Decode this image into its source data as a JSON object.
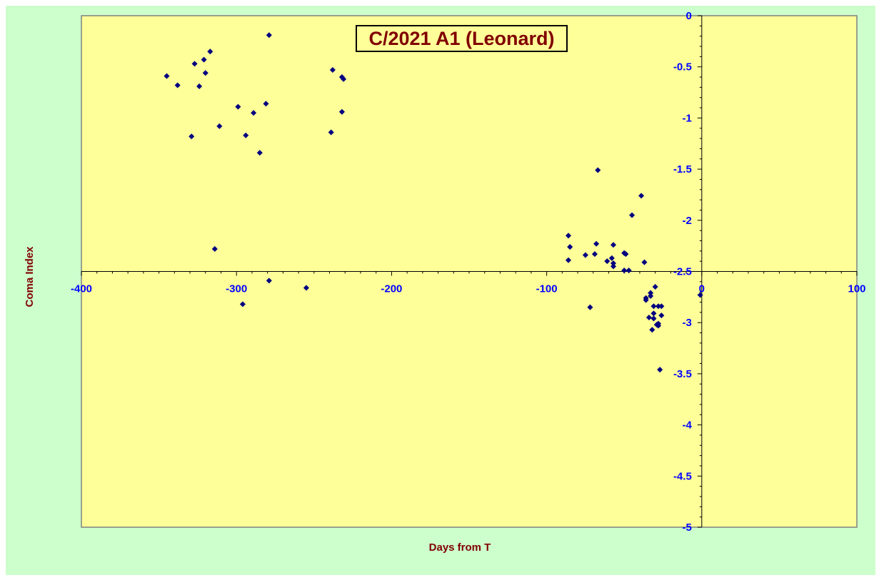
{
  "colors": {
    "outer_background": "#ccffcc",
    "plot_background": "#ffff99",
    "plot_border": "#808080",
    "axis_line": "#000000",
    "tick_label": "#0000ff",
    "axis_title": "#800000",
    "marker_fill": "#000080",
    "title_text": "#800000"
  },
  "chart_data": {
    "type": "scatter",
    "title": "C/2021 A1 (Leonard)",
    "xlabel": "Days from  T",
    "ylabel": "Coma Index",
    "xlim": [
      -400,
      100
    ],
    "ylim": [
      -5,
      0
    ],
    "x_ticks": [
      -400,
      -300,
      -200,
      -100,
      0,
      100
    ],
    "y_ticks": [
      0,
      -0.5,
      -1,
      -1.5,
      -2,
      -2.5,
      -3,
      -3.5,
      -4,
      -4.5,
      -5
    ],
    "x_tick_labels": [
      "-400",
      "-300",
      "-200",
      "-100",
      "0",
      "100"
    ],
    "y_tick_labels": [
      "0",
      "-0.5",
      "-1",
      "-1.5",
      "-2",
      "-2.5",
      "-3",
      "-3.5",
      "-4",
      "-4.5",
      "-5"
    ],
    "x_axis_crosses_y": -2.5,
    "y_axis_crosses_x": 0,
    "grid": false,
    "marker": "diamond",
    "series": [
      {
        "points": [
          [
            -345,
            -0.59
          ],
          [
            -338,
            -0.68
          ],
          [
            -329,
            -1.18
          ],
          [
            -327,
            -0.47
          ],
          [
            -324,
            -0.69
          ],
          [
            -321,
            -0.43
          ],
          [
            -320,
            -0.56
          ],
          [
            -317,
            -0.35
          ],
          [
            -314,
            -2.28
          ],
          [
            -311,
            -1.08
          ],
          [
            -299,
            -0.89
          ],
          [
            -296,
            -2.82
          ],
          [
            -294,
            -1.17
          ],
          [
            -289,
            -0.95
          ],
          [
            -285,
            -1.34
          ],
          [
            -281,
            -0.86
          ],
          [
            -279,
            -0.19
          ],
          [
            -279,
            -2.59
          ],
          [
            -255,
            -2.66
          ],
          [
            -239,
            -1.14
          ],
          [
            -238,
            -0.53
          ],
          [
            -232,
            -0.6
          ],
          [
            -232,
            -0.94
          ],
          [
            -231,
            -0.62
          ],
          [
            -86,
            -2.15
          ],
          [
            -86,
            -2.39
          ],
          [
            -85,
            -2.26
          ],
          [
            -75,
            -2.34
          ],
          [
            -72,
            -2.85
          ],
          [
            -69,
            -2.33
          ],
          [
            -68,
            -2.23
          ],
          [
            -67,
            -1.51
          ],
          [
            -61,
            -2.4
          ],
          [
            -58,
            -2.37
          ],
          [
            -57,
            -2.24
          ],
          [
            -57,
            -2.42
          ],
          [
            -57,
            -2.45
          ],
          [
            -50,
            -2.32
          ],
          [
            -50,
            -2.49
          ],
          [
            -49,
            -2.33
          ],
          [
            -47,
            -2.49
          ],
          [
            -45,
            -1.95
          ],
          [
            -39,
            -1.76
          ],
          [
            -37,
            -2.41
          ],
          [
            -36,
            -2.78
          ],
          [
            -36,
            -2.76
          ],
          [
            -34,
            -2.95
          ],
          [
            -33,
            -2.74
          ],
          [
            -33,
            -2.71
          ],
          [
            -32,
            -3.07
          ],
          [
            -31,
            -2.84
          ],
          [
            -31,
            -2.91
          ],
          [
            -31,
            -2.96
          ],
          [
            -30,
            -2.65
          ],
          [
            -29,
            -3.02
          ],
          [
            -28,
            -3.03
          ],
          [
            -28,
            -3.01
          ],
          [
            -28,
            -2.84
          ],
          [
            -27,
            -3.46
          ],
          [
            -26,
            -2.93
          ],
          [
            -26,
            -2.84
          ],
          [
            -1,
            -2.73
          ]
        ]
      }
    ]
  }
}
